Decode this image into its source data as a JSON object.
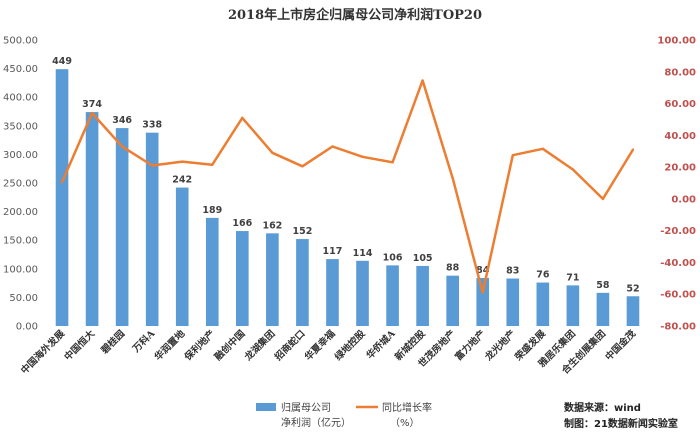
{
  "chart_data": {
    "type": "bar",
    "title": "2018年上市房企归属母公司净利润TOP20",
    "categories": [
      "中国海外发展",
      "中国恒大",
      "碧桂园",
      "万科A",
      "华润置地",
      "保利地产",
      "融创中国",
      "龙湖集团",
      "招商蛇口",
      "华夏幸福",
      "绿地控股",
      "华侨城A",
      "新城控股",
      "世茂房地产",
      "富力地产",
      "龙光地产",
      "荣盛发展",
      "雅居乐集团",
      "合生创展集团",
      "中国金茂"
    ],
    "series": [
      {
        "name": "归属母公司净利润（亿元）",
        "legend_lines": [
          "归属母公司",
          "净利润（亿元）"
        ],
        "axis": "left",
        "values": [
          449,
          374,
          346,
          338,
          242,
          189,
          166,
          162,
          152,
          117,
          114,
          106,
          105,
          88,
          84,
          83,
          76,
          71,
          58,
          52
        ],
        "color": "#5b9bd5"
      },
      {
        "name": "同比增长率（%）",
        "legend_lines": [
          "同比增长率",
          "（%）"
        ],
        "axis": "right",
        "type": "line",
        "values": [
          10.5,
          54,
          33,
          21,
          23.5,
          21.5,
          51,
          29,
          20.5,
          33,
          26.5,
          23,
          74.5,
          13,
          -59,
          27.5,
          31.5,
          18.5,
          0,
          31
        ],
        "color": "#ed7d31"
      }
    ],
    "y_left": {
      "min": 0,
      "max": 500,
      "step": 50,
      "tick_labels": [
        "0.00",
        "50.00",
        "100.00",
        "150.00",
        "200.00",
        "250.00",
        "300.00",
        "350.00",
        "400.00",
        "450.00",
        "500.00"
      ]
    },
    "y_right": {
      "min": -80,
      "max": 100,
      "step": 20,
      "tick_labels": [
        "-80.00",
        "-60.00",
        "-40.00",
        "-20.00",
        "0.00",
        "20.00",
        "40.00",
        "60.00",
        "80.00",
        "100.00"
      ]
    },
    "grid": false,
    "legend_position": "bottom",
    "source_lines": [
      "数据来源：wind",
      "制图：21数据新闻实验室"
    ]
  }
}
